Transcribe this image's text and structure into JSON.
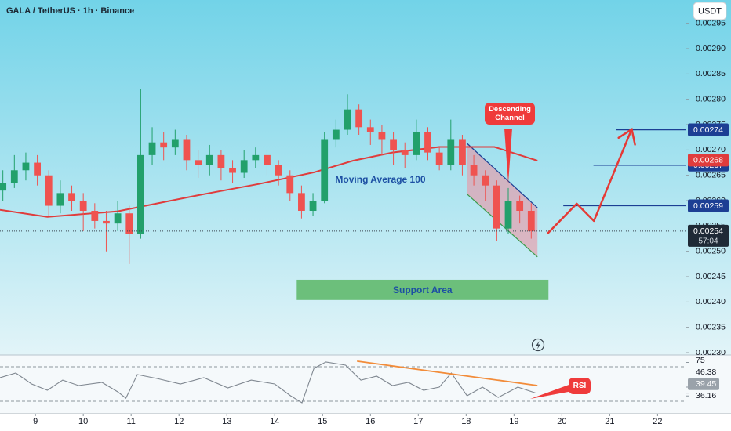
{
  "chart_data": [
    {
      "type": "candlestick",
      "title": "GALA / TetherUS · 1h · Binance",
      "currency_button": "USDT",
      "x": [
        8.32,
        8.56,
        8.8,
        9.04,
        9.28,
        9.52,
        9.76,
        10.0,
        10.24,
        10.48,
        10.72,
        10.96,
        11.2,
        11.44,
        11.68,
        11.92,
        12.16,
        12.4,
        12.64,
        12.88,
        13.12,
        13.36,
        13.6,
        13.84,
        14.08,
        14.32,
        14.56,
        14.8,
        15.04,
        15.28,
        15.52,
        15.76,
        16.0,
        16.24,
        16.48,
        16.72,
        16.96,
        17.2,
        17.44,
        17.68,
        17.92,
        18.16,
        18.4,
        18.64,
        18.88,
        19.12,
        19.36
      ],
      "open": [
        0.00262,
        0.002635,
        0.00266,
        0.002675,
        0.00265,
        0.00259,
        0.002615,
        0.0026,
        0.00258,
        0.00256,
        0.002555,
        0.002575,
        0.002535,
        0.00269,
        0.002715,
        0.002705,
        0.00272,
        0.00268,
        0.00267,
        0.00269,
        0.002665,
        0.002655,
        0.00268,
        0.00269,
        0.00267,
        0.00265,
        0.002615,
        0.00258,
        0.0026,
        0.00272,
        0.00274,
        0.00278,
        0.002745,
        0.002735,
        0.00272,
        0.0027,
        0.00269,
        0.002735,
        0.002695,
        0.00267,
        0.00272,
        0.00267,
        0.00265,
        0.00263,
        0.002545,
        0.0026,
        0.00258
      ],
      "high": [
        0.00266,
        0.00269,
        0.002695,
        0.00269,
        0.00266,
        0.00264,
        0.00263,
        0.002615,
        0.002595,
        0.00258,
        0.0026,
        0.00259,
        0.00282,
        0.002745,
        0.002735,
        0.00274,
        0.00273,
        0.0027,
        0.00271,
        0.0027,
        0.00268,
        0.0027,
        0.002705,
        0.0027,
        0.00268,
        0.00266,
        0.00263,
        0.002615,
        0.002735,
        0.00276,
        0.00281,
        0.00279,
        0.00276,
        0.00275,
        0.002735,
        0.002715,
        0.00276,
        0.002745,
        0.002705,
        0.00276,
        0.00273,
        0.00269,
        0.00266,
        0.00264,
        0.002625,
        0.00261,
        0.002595
      ],
      "low": [
        0.0026,
        0.002625,
        0.00264,
        0.00263,
        0.00257,
        0.002575,
        0.00258,
        0.00254,
        0.002545,
        0.0025,
        0.00254,
        0.002475,
        0.002525,
        0.00267,
        0.00268,
        0.00269,
        0.00266,
        0.002645,
        0.00265,
        0.00264,
        0.002635,
        0.002645,
        0.002665,
        0.00265,
        0.00263,
        0.0026,
        0.002565,
        0.00257,
        0.002595,
        0.002705,
        0.00273,
        0.00273,
        0.00271,
        0.00269,
        0.00267,
        0.002665,
        0.00268,
        0.00268,
        0.00266,
        0.00266,
        0.00265,
        0.00263,
        0.0026,
        0.00252,
        0.002535,
        0.002555,
        0.002525
      ],
      "close": [
        0.002635,
        0.00266,
        0.002675,
        0.00265,
        0.00259,
        0.002615,
        0.0026,
        0.00258,
        0.00256,
        0.002555,
        0.002575,
        0.002535,
        0.00269,
        0.002715,
        0.002705,
        0.00272,
        0.00268,
        0.00267,
        0.00269,
        0.002665,
        0.002655,
        0.00268,
        0.00269,
        0.00267,
        0.00265,
        0.002615,
        0.00258,
        0.0026,
        0.00272,
        0.00274,
        0.00278,
        0.002745,
        0.002735,
        0.00272,
        0.0027,
        0.00269,
        0.002735,
        0.002695,
        0.00267,
        0.00272,
        0.00267,
        0.00265,
        0.00263,
        0.002545,
        0.0026,
        0.00258,
        0.00254
      ],
      "up_color": "#22a06b",
      "down_color": "#ef5350",
      "xlim": [
        8.26,
        22.6
      ],
      "xticks": [
        9,
        10,
        11,
        12,
        13,
        14,
        15,
        16,
        17,
        18,
        19,
        20,
        21,
        22
      ],
      "ylim": [
        0.002297,
        0.002996
      ],
      "yticks": [
        {
          "value": 0.00295,
          "label": "0.00295"
        },
        {
          "value": 0.0029,
          "label": "0.00290"
        },
        {
          "value": 0.00285,
          "label": "0.00285"
        },
        {
          "value": 0.0028,
          "label": "0.00280"
        },
        {
          "value": 0.00275,
          "label": "0.00275"
        },
        {
          "value": 0.0027,
          "label": "0.00270"
        },
        {
          "value": 0.00265,
          "label": "0.00265"
        },
        {
          "value": 0.0026,
          "label": "0.00260"
        },
        {
          "value": 0.00255,
          "label": "0.00255"
        },
        {
          "value": 0.0025,
          "label": "0.00250"
        },
        {
          "value": 0.00245,
          "label": "0.00245"
        },
        {
          "value": 0.0024,
          "label": "0.00240"
        },
        {
          "value": 0.00235,
          "label": "0.00235"
        },
        {
          "value": 0.0023,
          "label": "0.00230"
        }
      ],
      "moving_average": {
        "name": "Moving Average 100",
        "color": "#e03c3c",
        "x": [
          8.26,
          9.25,
          10.72,
          12.36,
          13.67,
          14.82,
          15.64,
          16.46,
          17.44,
          18.59,
          19.49
        ],
        "values": [
          0.002582,
          0.002568,
          0.002579,
          0.00261,
          0.002633,
          0.002656,
          0.002679,
          0.002695,
          0.002706,
          0.002706,
          0.002679
        ],
        "current_value": 0.00268
      },
      "levels": [
        {
          "value": 0.00274,
          "x_start": 21.13
        },
        {
          "value": 0.00267,
          "x_start": 20.66
        },
        {
          "value": 0.00259,
          "x_start": 20.03
        }
      ],
      "level_color": "#1c3f94",
      "current_price": {
        "value": 0.00254,
        "countdown": "57:04"
      },
      "channel": {
        "label": "Descending Channel",
        "x": [
          18.02,
          19.49
        ],
        "upper": [
          0.002713,
          0.002586
        ],
        "lower": [
          0.002613,
          0.002489
        ]
      },
      "projection": {
        "color": "#e53935",
        "x": [
          19.7,
          20.31,
          20.67,
          21.46
        ],
        "values": [
          0.002535,
          0.002594,
          0.00256,
          0.002741
        ]
      },
      "support": {
        "label": "Support Area",
        "x": [
          14.46,
          19.72
        ],
        "low": 0.002404,
        "high": 0.002444,
        "color": "#6cbf7b"
      }
    },
    {
      "type": "line",
      "name": "RSI",
      "color": "#7f8790",
      "x": [
        8.26,
        8.59,
        8.92,
        9.25,
        9.57,
        9.9,
        10.39,
        10.72,
        10.89,
        11.13,
        11.54,
        12.03,
        12.52,
        13.02,
        13.51,
        14.0,
        14.33,
        14.57,
        14.82,
        15.07,
        15.48,
        15.8,
        16.13,
        16.46,
        16.79,
        17.11,
        17.44,
        17.69,
        18.02,
        18.34,
        18.67,
        19.08,
        19.46
      ],
      "values": [
        57.3,
        62.7,
        50,
        42.7,
        54.5,
        48.2,
        51.8,
        40.9,
        33.6,
        60.9,
        56.4,
        50,
        57.3,
        45.5,
        54.5,
        50,
        36.4,
        28.2,
        68.2,
        75.5,
        71.8,
        54.5,
        59.1,
        48.2,
        51.8,
        42.7,
        46.4,
        62.7,
        36.4,
        46.4,
        34.5,
        46.4,
        39.45
      ],
      "ylim": [
        16.4,
        81.8
      ],
      "yticks": [
        75,
        46.38,
        39.45,
        36.16
      ],
      "levels": [
        70,
        30
      ],
      "trendline": {
        "color": "#f28c3a",
        "x": [
          15.72,
          19.49
        ],
        "values": [
          76.4,
          48.2
        ]
      }
    }
  ]
}
